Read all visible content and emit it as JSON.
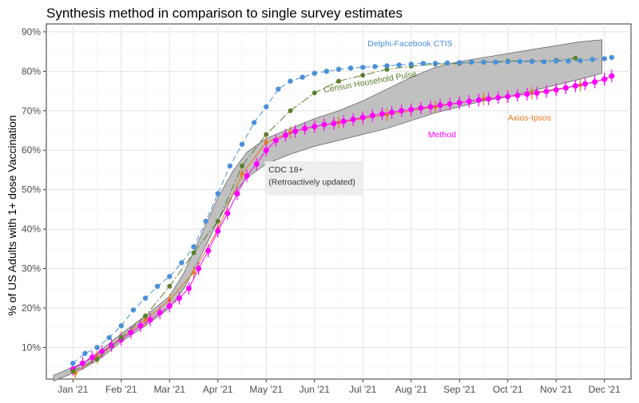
{
  "chart_data": {
    "type": "line",
    "title": "Synthesis method in comparison to single survey estimates",
    "xlabel": "",
    "ylabel": "% of US Adults with 1+ dose Vaccination",
    "x_ticks": [
      "Jan '21",
      "Feb '21",
      "Mar '21",
      "Apr '21",
      "May '21",
      "Jun '21",
      "Jul '21",
      "Aug '21",
      "Sep '21",
      "Oct '21",
      "Nov '21",
      "Dec '21"
    ],
    "y_ticks": [
      "10%",
      "20%",
      "30%",
      "40%",
      "50%",
      "60%",
      "70%",
      "80%",
      "90%"
    ],
    "ylim": [
      2,
      92
    ],
    "xlim": [
      -0.55,
      11.55
    ],
    "grid": true,
    "colors": {
      "delphi": "#4a90d9",
      "census": "#5b7f2e",
      "axios": "#e07a1f",
      "method": "#ff00ff",
      "cdc_band": "#bdbdbd"
    },
    "annotations": [
      {
        "id": "delphi",
        "text": "Delphi-Facebook CTIS",
        "x": 6.1,
        "y": 86.3
      },
      {
        "id": "census",
        "text": "Census Household Pulse",
        "x": 5.2,
        "y": 74.6,
        "angle": -10
      },
      {
        "id": "axios",
        "text": "Axios-Ipsos",
        "x": 9.0,
        "y": 67.5
      },
      {
        "id": "method",
        "text": "Method",
        "x": 7.35,
        "y": 63.3
      },
      {
        "id": "cdc1",
        "text": "CDC 18+",
        "x": 4.05,
        "y": 54.4
      },
      {
        "id": "cdc2",
        "text": "(Retroactively updated)",
        "x": 4.05,
        "y": 51.2
      }
    ],
    "cdc_band": {
      "name": "CDC 18+ (Retroactively updated)",
      "x": [
        -0.4,
        0.2,
        0.6,
        1.0,
        1.5,
        2.0,
        2.3,
        2.6,
        3.0,
        3.3,
        3.6,
        4.0,
        4.5,
        5.0,
        5.5,
        6.0,
        6.5,
        7.0,
        7.5,
        8.0,
        8.5,
        9.0,
        9.5,
        10.0,
        10.5,
        10.95
      ],
      "lower": [
        1.5,
        4.5,
        7.5,
        11.5,
        15.5,
        20.0,
        25.0,
        32.0,
        42.0,
        48.5,
        53.0,
        56.5,
        59.0,
        61.0,
        62.5,
        64.0,
        65.5,
        67.5,
        69.5,
        71.0,
        72.5,
        73.5,
        75.0,
        76.5,
        78.0,
        79.5
      ],
      "upper": [
        3.0,
        6.0,
        9.5,
        13.5,
        18.0,
        23.0,
        29.0,
        37.0,
        48.0,
        54.5,
        59.5,
        63.0,
        65.5,
        68.0,
        70.0,
        72.5,
        75.5,
        78.5,
        81.0,
        82.5,
        83.5,
        84.5,
        85.5,
        86.5,
        87.5,
        88.0
      ]
    },
    "series": [
      {
        "name": "Delphi-Facebook CTIS",
        "x": [
          0.0,
          0.25,
          0.5,
          0.75,
          1.0,
          1.25,
          1.5,
          1.75,
          2.0,
          2.25,
          2.5,
          2.75,
          3.0,
          3.25,
          3.5,
          3.75,
          4.0,
          4.25,
          4.5,
          4.75,
          5.0,
          5.25,
          5.5,
          5.75,
          6.0,
          6.25,
          6.5,
          6.75,
          7.0,
          7.25,
          7.5,
          7.75,
          8.0,
          8.25,
          8.5,
          8.75,
          9.0,
          9.25,
          9.5,
          9.75,
          10.0,
          10.25,
          10.5,
          10.75,
          11.0,
          11.15
        ],
        "y": [
          6.0,
          8.5,
          10.0,
          12.5,
          15.5,
          19.5,
          22.5,
          25.5,
          28.0,
          31.5,
          35.5,
          42.0,
          49.0,
          56.0,
          61.5,
          67.0,
          71.0,
          75.5,
          77.5,
          78.5,
          79.5,
          80.0,
          80.5,
          80.8,
          81.0,
          81.2,
          81.4,
          81.6,
          81.8,
          82.0,
          82.0,
          82.1,
          82.2,
          82.3,
          82.3,
          82.3,
          82.4,
          82.5,
          82.5,
          82.4,
          82.6,
          82.6,
          82.7,
          83.0,
          83.2,
          83.5
        ]
      },
      {
        "name": "Census Household Pulse",
        "x": [
          0.0,
          0.5,
          1.0,
          1.5,
          2.0,
          2.5,
          3.0,
          3.5,
          4.0,
          4.5,
          5.0,
          5.5,
          6.0,
          6.5,
          7.0,
          7.5,
          8.0,
          8.5,
          9.0,
          9.5,
          10.0,
          10.4
        ],
        "y": [
          4.0,
          7.0,
          12.5,
          18.0,
          25.5,
          34.0,
          42.0,
          56.0,
          64.0,
          70.0,
          74.5,
          77.5,
          79.0,
          80.5,
          81.3,
          81.8,
          82.0,
          82.3,
          82.6,
          82.6,
          82.8,
          83.3
        ]
      },
      {
        "name": "Axios-Ipsos",
        "x": [
          0.05,
          0.5,
          1.0,
          1.5,
          2.0,
          2.5,
          3.0,
          3.5,
          4.0,
          4.5,
          5.0,
          5.5,
          6.0,
          6.5,
          7.0,
          7.5,
          8.0,
          8.5,
          9.0,
          9.5,
          10.0,
          10.5,
          11.0
        ],
        "y": [
          3.5,
          7.5,
          12.5,
          17.0,
          22.0,
          29.0,
          40.0,
          54.0,
          62.0,
          64.5,
          66.0,
          67.0,
          68.0,
          69.0,
          70.0,
          71.0,
          72.0,
          73.0,
          73.5,
          74.5,
          75.5,
          76.5,
          78.0
        ]
      },
      {
        "name": "Method",
        "x": [
          0.0,
          0.2,
          0.4,
          0.6,
          0.8,
          1.0,
          1.2,
          1.4,
          1.6,
          1.8,
          2.0,
          2.2,
          2.4,
          2.6,
          2.8,
          3.0,
          3.2,
          3.4,
          3.6,
          3.8,
          4.0,
          4.2,
          4.4,
          4.6,
          4.8,
          5.0,
          5.2,
          5.4,
          5.6,
          5.8,
          6.0,
          6.2,
          6.4,
          6.6,
          6.8,
          7.0,
          7.2,
          7.4,
          7.6,
          7.8,
          8.0,
          8.2,
          8.4,
          8.6,
          8.8,
          9.0,
          9.2,
          9.4,
          9.6,
          9.8,
          10.0,
          10.2,
          10.4,
          10.6,
          10.8,
          11.0,
          11.15
        ],
        "y": [
          4.5,
          6.0,
          7.5,
          9.0,
          10.5,
          12.0,
          13.8,
          15.5,
          17.0,
          18.8,
          20.5,
          22.5,
          25.0,
          30.0,
          34.5,
          39.5,
          44.0,
          49.0,
          53.5,
          56.5,
          60.0,
          62.5,
          63.8,
          64.8,
          65.5,
          66.0,
          66.5,
          66.8,
          67.3,
          67.8,
          68.3,
          68.8,
          69.2,
          69.6,
          70.0,
          70.3,
          70.7,
          71.0,
          71.4,
          71.7,
          72.0,
          72.4,
          72.7,
          73.0,
          73.3,
          73.6,
          73.9,
          74.2,
          74.5,
          74.9,
          75.3,
          75.8,
          76.3,
          76.8,
          77.3,
          78.0,
          78.8
        ],
        "err": 1.6
      }
    ]
  }
}
